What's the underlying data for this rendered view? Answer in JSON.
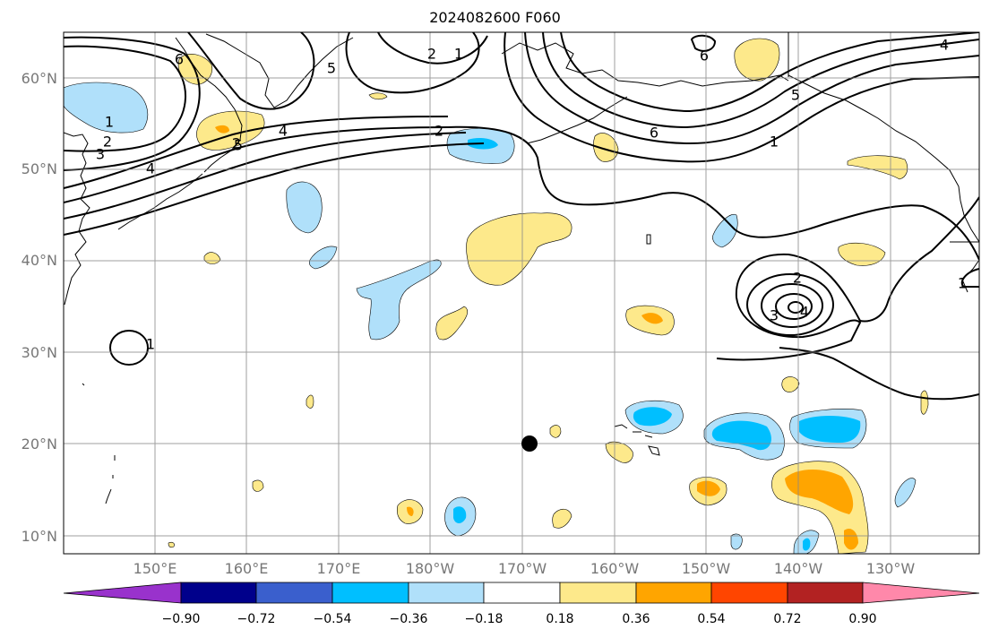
{
  "title": "2024082600 F060",
  "latitudes": [
    "60°N",
    "50°N",
    "40°N",
    "30°N",
    "20°N",
    "10°N"
  ],
  "longitudes": [
    "150°E",
    "160°E",
    "170°E",
    "180°W",
    "170°W",
    "160°W",
    "150°W",
    "140°W",
    "130°W"
  ],
  "colorbar": {
    "ticks": [
      "−0.90",
      "−0.72",
      "−0.54",
      "−0.36",
      "−0.18",
      "0.18",
      "0.36",
      "0.54",
      "0.72",
      "0.90"
    ],
    "colors": [
      "#9932cc",
      "#00008b",
      "#3a5fcd",
      "#00bfff",
      "#b0e0fa",
      "#ffffff",
      "#fde98b",
      "#ffa500",
      "#ff4500",
      "#b22222",
      "#ff88aa"
    ]
  },
  "contour_labels": [
    "6",
    "2",
    "1",
    "5",
    "2",
    "1",
    "2",
    "3",
    "4",
    "5",
    "4",
    "2",
    "6",
    "6",
    "5",
    "1",
    "4",
    "1",
    "2",
    "3",
    "4",
    "1"
  ],
  "colors": {
    "positive": "#fde98b",
    "positive_strong": "#ffa500",
    "negative": "#b0e0fa",
    "negative_strong": "#00bfff"
  }
}
